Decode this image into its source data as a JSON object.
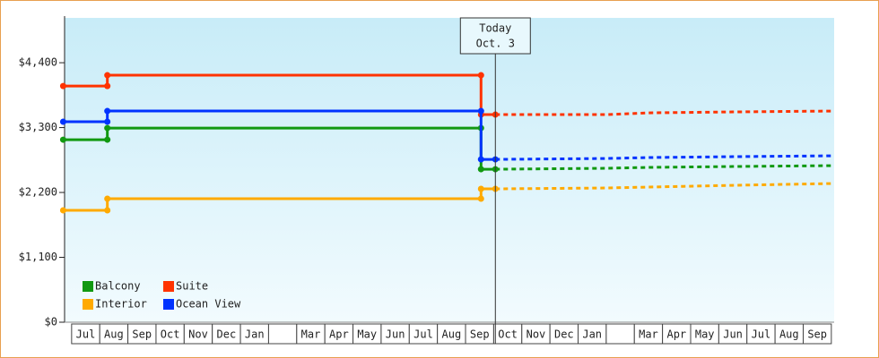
{
  "chart_data": {
    "type": "line",
    "ylim": [
      0,
      5160
    ],
    "yticks": [
      {
        "value": 0,
        "label": "$0"
      },
      {
        "value": 1100,
        "label": "$1,100"
      },
      {
        "value": 2200,
        "label": "$2,200"
      },
      {
        "value": 3300,
        "label": "$3,300"
      },
      {
        "value": 4400,
        "label": "$4,400"
      }
    ],
    "xlim": [
      -0.25,
      27.1
    ],
    "categories": [
      "Jul",
      "Aug",
      "Sep",
      "Oct",
      "Nov",
      "Dec",
      "Jan",
      null,
      "Mar",
      "Apr",
      "May",
      "Jun",
      "Jul",
      "Aug",
      "Sep",
      "Oct",
      "Nov",
      "Dec",
      "Jan",
      null,
      "Mar",
      "Apr",
      "May",
      "Jun",
      "Jul",
      "Aug",
      "Sep"
    ],
    "x": [
      -0.3,
      1.27,
      1.27,
      14.55,
      14.55,
      15.06
    ],
    "forecast_x": [
      15.06,
      19,
      20.5,
      23.5,
      27.07
    ],
    "today": {
      "x": 15.06,
      "label": [
        "Today",
        "Oct. 3"
      ]
    },
    "series": [
      {
        "name": "Balcony",
        "color": "#119911",
        "values": [
          3095,
          3095,
          3292,
          3292,
          2594,
          2594
        ],
        "forecast": [
          2594,
          2610,
          2625,
          2640,
          2655
        ]
      },
      {
        "name": "Suite",
        "color": "#ff3300",
        "values": [
          4005,
          4005,
          4188,
          4188,
          3520,
          3520
        ],
        "forecast": [
          3520,
          3520,
          3550,
          3566,
          3581
        ]
      },
      {
        "name": "Interior",
        "color": "#ffaa00",
        "values": [
          1897,
          1897,
          2094,
          2094,
          2261,
          2261
        ],
        "forecast": [
          2261,
          2276,
          2291,
          2321,
          2352
        ]
      },
      {
        "name": "Ocean View",
        "color": "#0033ff",
        "values": [
          3399,
          3399,
          3581,
          3581,
          2761,
          2761
        ],
        "forecast": [
          2761,
          2776,
          2792,
          2807,
          2822
        ]
      }
    ]
  }
}
